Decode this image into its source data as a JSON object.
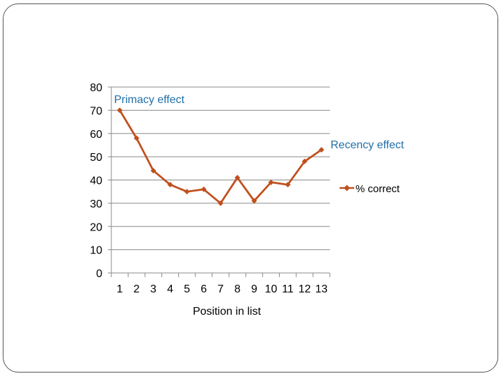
{
  "chart_data": {
    "type": "line",
    "title": "",
    "xlabel": "Position in list",
    "ylabel": "",
    "categories": [
      "1",
      "2",
      "3",
      "4",
      "5",
      "6",
      "7",
      "8",
      "9",
      "10",
      "11",
      "12",
      "13"
    ],
    "series": [
      {
        "name": "% correct",
        "values": [
          70,
          58,
          44,
          38,
          35,
          36,
          30,
          41,
          31,
          39,
          38,
          48,
          53
        ]
      }
    ],
    "ylim": [
      0,
      80
    ],
    "yticks": [
      "0",
      "10",
      "20",
      "30",
      "40",
      "50",
      "60",
      "70",
      "80"
    ],
    "grid": true,
    "legend": "right",
    "annotations": [
      {
        "text": "Primacy effect"
      },
      {
        "text": "Recency effect"
      }
    ]
  },
  "colors": {
    "series": "#c0501f",
    "grid": "#888888",
    "annotation": "#1f6fa8"
  }
}
